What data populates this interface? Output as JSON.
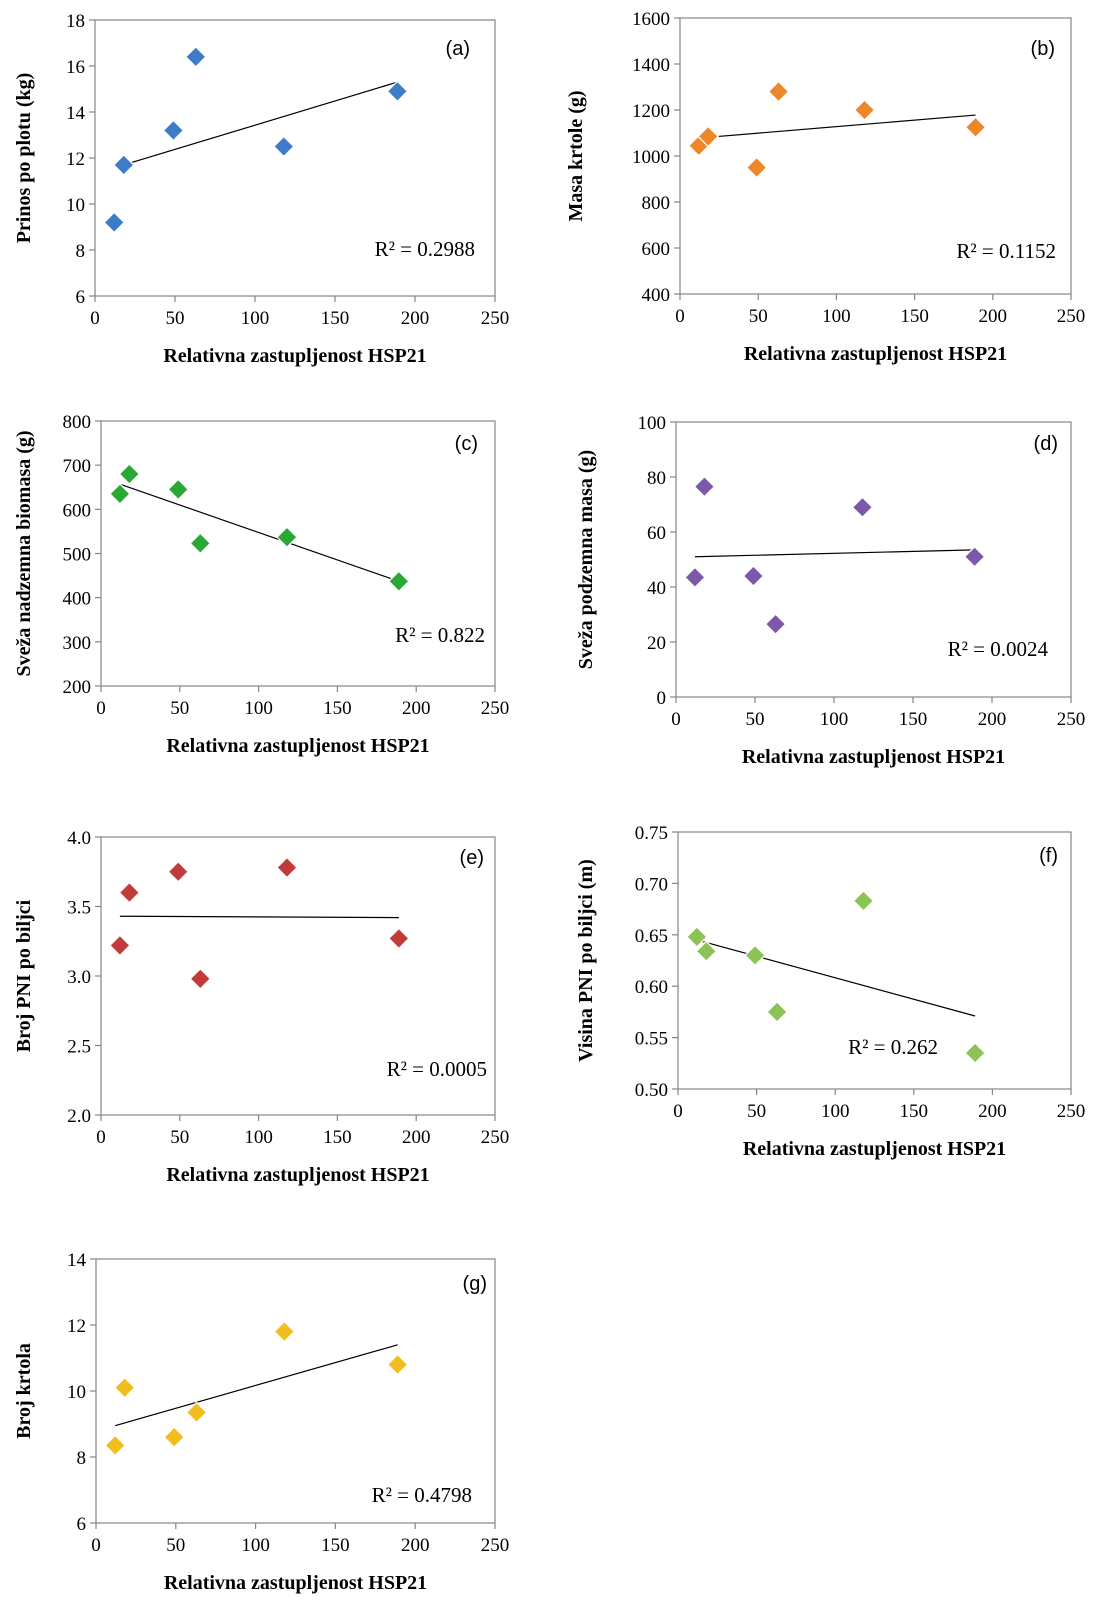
{
  "figure_xlabel": "Relativna zastupljenost HSP21",
  "chart_data": [
    {
      "type": "scatter",
      "panel": "(a)",
      "ylabel": "Prinos po plotu (kg)",
      "xlim": [
        0,
        250
      ],
      "xticks": [
        0,
        50,
        100,
        150,
        200,
        250
      ],
      "ylim": [
        6,
        18
      ],
      "yticks": [
        "6",
        "8",
        "10",
        "12",
        "14",
        "16",
        "18"
      ],
      "points": [
        [
          12,
          9.2
        ],
        [
          18,
          11.7
        ],
        [
          49,
          13.2
        ],
        [
          63,
          16.4
        ],
        [
          118,
          12.5
        ],
        [
          189,
          14.9
        ]
      ],
      "trendline": [
        [
          18,
          11.7
        ],
        [
          189,
          15.3
        ]
      ],
      "r2": "R² = 0.2988",
      "marker_color": "#3d7cc9"
    },
    {
      "type": "scatter",
      "panel": "(b)",
      "ylabel": "Masa krtole (g)",
      "xlim": [
        0,
        250
      ],
      "xticks": [
        0,
        50,
        100,
        150,
        200,
        250
      ],
      "ylim": [
        400,
        1600
      ],
      "yticks": [
        "400",
        "600",
        "800",
        "1000",
        "1200",
        "1400",
        "1600"
      ],
      "points": [
        [
          12,
          1045
        ],
        [
          18,
          1085
        ],
        [
          49,
          950
        ],
        [
          63,
          1280
        ],
        [
          118,
          1200
        ],
        [
          189,
          1125
        ]
      ],
      "trendline": [
        [
          12,
          1078
        ],
        [
          189,
          1178
        ]
      ],
      "r2": "R² = 0.1152",
      "marker_color": "#f0862a"
    },
    {
      "type": "scatter",
      "panel": "(c)",
      "ylabel": "Sveža nadzemna biomasa (g)",
      "xlim": [
        0,
        250
      ],
      "xticks": [
        0,
        50,
        100,
        150,
        200,
        250
      ],
      "ylim": [
        200,
        800
      ],
      "yticks": [
        "200",
        "300",
        "400",
        "500",
        "600",
        "700",
        "800"
      ],
      "points": [
        [
          12,
          635
        ],
        [
          18,
          680
        ],
        [
          49,
          645
        ],
        [
          63,
          523
        ],
        [
          118,
          537
        ],
        [
          189,
          437
        ]
      ],
      "trendline": [
        [
          12,
          657
        ],
        [
          189,
          437
        ]
      ],
      "r2": "R² = 0.822",
      "marker_color": "#2aa836"
    },
    {
      "type": "scatter",
      "panel": "(d)",
      "ylabel": "Sveža podzemna masa (g)",
      "xlim": [
        0,
        250
      ],
      "xticks": [
        0,
        50,
        100,
        150,
        200,
        250
      ],
      "ylim": [
        0,
        100
      ],
      "yticks": [
        "0",
        "20",
        "40",
        "60",
        "80",
        "100"
      ],
      "points": [
        [
          12,
          43.5
        ],
        [
          18,
          76.5
        ],
        [
          49,
          44
        ],
        [
          63,
          26.5
        ],
        [
          118,
          69
        ],
        [
          189,
          51
        ]
      ],
      "trendline": [
        [
          12,
          51
        ],
        [
          189,
          53.5
        ]
      ],
      "r2": "R² = 0.0024",
      "marker_color": "#7b58a8"
    },
    {
      "type": "scatter",
      "panel": "(e)",
      "ylabel": "Broj PNI po biljci",
      "xlim": [
        0,
        250
      ],
      "xticks": [
        0,
        50,
        100,
        150,
        200,
        250
      ],
      "ylim": [
        2.0,
        4.0
      ],
      "yticks": [
        "2.0",
        "2.5",
        "3.0",
        "3.5",
        "4.0"
      ],
      "points": [
        [
          12,
          3.22
        ],
        [
          18,
          3.6
        ],
        [
          49,
          3.75
        ],
        [
          63,
          2.98
        ],
        [
          118,
          3.78
        ],
        [
          189,
          3.27
        ]
      ],
      "trendline": [
        [
          12,
          3.43
        ],
        [
          189,
          3.42
        ]
      ],
      "r2": "R² = 0.0005",
      "marker_color": "#c23b3b"
    },
    {
      "type": "scatter",
      "panel": "(f)",
      "ylabel": "Visina PNI po biljci (m)",
      "xlim": [
        0,
        250
      ],
      "xticks": [
        0,
        50,
        100,
        150,
        200,
        250
      ],
      "ylim": [
        0.5,
        0.75
      ],
      "yticks": [
        "0.50",
        "0.55",
        "0.60",
        "0.65",
        "0.70",
        "0.75"
      ],
      "points": [
        [
          12,
          0.648
        ],
        [
          18,
          0.634
        ],
        [
          49,
          0.63
        ],
        [
          63,
          0.575
        ],
        [
          118,
          0.683
        ],
        [
          189,
          0.535
        ]
      ],
      "trendline": [
        [
          12,
          0.645
        ],
        [
          189,
          0.571
        ]
      ],
      "r2": "R² = 0.262",
      "marker_color": "#8dc355"
    },
    {
      "type": "scatter",
      "panel": "(g)",
      "ylabel": "Broj krtola",
      "xlim": [
        0,
        250
      ],
      "xticks": [
        0,
        50,
        100,
        150,
        200,
        250
      ],
      "ylim": [
        6,
        14
      ],
      "yticks": [
        "6",
        "8",
        "10",
        "12",
        "14"
      ],
      "points": [
        [
          12,
          8.35
        ],
        [
          18,
          10.1
        ],
        [
          49,
          8.6
        ],
        [
          63,
          9.35
        ],
        [
          118,
          11.8
        ],
        [
          189,
          10.8
        ]
      ],
      "trendline": [
        [
          12,
          8.95
        ],
        [
          189,
          11.4
        ]
      ],
      "r2": "R² = 0.4798",
      "marker_color": "#f2bd1e"
    }
  ]
}
